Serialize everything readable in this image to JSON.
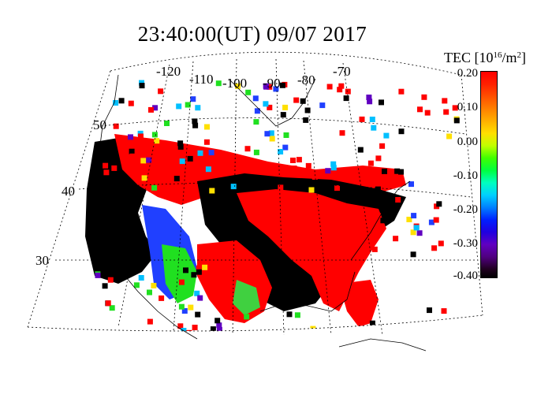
{
  "title": "23:40:00(UT)  09/07 2017",
  "colorbar": {
    "label": "TEC [10",
    "label_sup": "16",
    "label_unit": "/m",
    "label_unit_sup": "2",
    "label_close": "]",
    "ticks": [
      "0.20",
      "0.10",
      "0.00",
      "-0.10",
      "-0.20",
      "-0.30",
      "-0.40"
    ],
    "range": [
      -0.4,
      0.2
    ]
  },
  "longitude_labels": [
    "-120",
    "-110",
    "-100",
    "-90",
    "-80",
    "-70"
  ],
  "latitude_labels": [
    "50",
    "40",
    "30"
  ],
  "colors": {
    "positive": "#ff0000",
    "negative": "#000000",
    "background": "#ffffff"
  }
}
